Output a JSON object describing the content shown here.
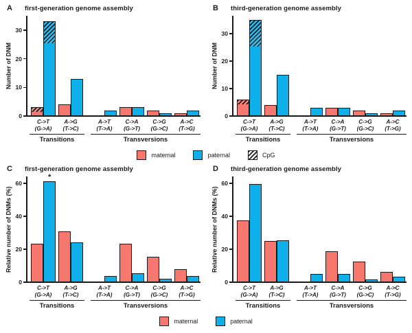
{
  "colors": {
    "maternal": "#F5776E",
    "paternal": "#0FAFEA",
    "outline": "#1a1a1a"
  },
  "legend_top": {
    "items": [
      {
        "label": "maternal",
        "swatch": "maternal"
      },
      {
        "label": "paternal",
        "swatch": "paternal"
      },
      {
        "label": "CpG",
        "swatch": "cpg"
      }
    ]
  },
  "legend_bottom": {
    "items": [
      {
        "label": "maternal",
        "swatch": "maternal"
      },
      {
        "label": "paternal",
        "swatch": "paternal"
      }
    ]
  },
  "chart_data": [
    {
      "panel": "A",
      "type": "bar",
      "title": "first-generation genome assembly",
      "ylabel": "Number of DNM",
      "yticks": [
        0,
        10,
        20,
        30
      ],
      "ymax": 35,
      "categories": [
        [
          "C->T",
          "(G->A)"
        ],
        [
          "A->G",
          "(T->C)"
        ],
        [
          "A->T",
          "(T->A)"
        ],
        [
          "C->A",
          "(G->T)"
        ],
        [
          "C->G",
          "(G->C)"
        ],
        [
          "A->C",
          "(T->G)"
        ]
      ],
      "sections": [
        {
          "label": "Transitions",
          "groups": [
            0,
            1
          ]
        },
        {
          "label": "Transversions",
          "groups": [
            2,
            3,
            4,
            5
          ]
        }
      ],
      "series": [
        {
          "name": "maternal",
          "values": [
            3,
            4,
            0,
            3,
            2,
            1
          ],
          "cpg": [
            2,
            0,
            0,
            0,
            0,
            0
          ]
        },
        {
          "name": "paternal",
          "values": [
            33,
            13,
            2,
            3,
            1,
            2
          ],
          "cpg": [
            8,
            0,
            0,
            0,
            0,
            0
          ]
        }
      ],
      "annotations": []
    },
    {
      "panel": "B",
      "type": "bar",
      "title": "third-generation genome assembly",
      "ylabel": "Number of DNM",
      "yticks": [
        0,
        10,
        20,
        30
      ],
      "ymax": 36.5,
      "categories": [
        [
          "C->T",
          "(G->A)"
        ],
        [
          "A->G",
          "(T->C)"
        ],
        [
          "A->T",
          "(T->A)"
        ],
        [
          "C->A",
          "(G->T)"
        ],
        [
          "C->G",
          "(G->C)"
        ],
        [
          "A->C",
          "(T->G)"
        ]
      ],
      "sections": [
        {
          "label": "Transitions",
          "groups": [
            0,
            1
          ]
        },
        {
          "label": "Transversions",
          "groups": [
            2,
            3,
            4,
            5
          ]
        }
      ],
      "series": [
        {
          "name": "maternal",
          "values": [
            6,
            4,
            0,
            3,
            2,
            1
          ],
          "cpg": [
            2,
            0,
            0,
            0,
            0,
            0
          ]
        },
        {
          "name": "paternal",
          "values": [
            35,
            15,
            3,
            3,
            1,
            2
          ],
          "cpg": [
            10,
            0,
            0,
            0,
            0,
            0
          ]
        }
      ],
      "annotations": []
    },
    {
      "panel": "C",
      "type": "bar",
      "title": "first-generation genome assembly",
      "ylabel": "Relative number of DNMs (%)",
      "yticks": [
        0,
        20,
        40,
        60
      ],
      "ymax": 64,
      "categories": [
        [
          "C->T",
          "(G->A)"
        ],
        [
          "A->G",
          "(T->C)"
        ],
        [
          "A->T",
          "(T->A)"
        ],
        [
          "C->A",
          "(G->T)"
        ],
        [
          "C->G",
          "(G->C)"
        ],
        [
          "A->C",
          "(T->G)"
        ]
      ],
      "sections": [
        {
          "label": "Transitions",
          "groups": [
            0,
            1
          ]
        },
        {
          "label": "Transversions",
          "groups": [
            2,
            3,
            4,
            5
          ]
        }
      ],
      "series": [
        {
          "name": "maternal",
          "values": [
            23.1,
            30.8,
            0,
            23.1,
            15.4,
            7.7
          ],
          "cpg": [
            0,
            0,
            0,
            0,
            0,
            0
          ]
        },
        {
          "name": "paternal",
          "values": [
            61.1,
            24.1,
            3.7,
            5.6,
            1.9,
            3.7
          ],
          "cpg": [
            0,
            0,
            0,
            0,
            0,
            0
          ]
        }
      ],
      "annotations": [
        {
          "group": 0,
          "series": 1,
          "text": "*"
        }
      ]
    },
    {
      "panel": "D",
      "type": "bar",
      "title": "third-generation genome assembly",
      "ylabel": "Relative number of DNMs (%)",
      "yticks": [
        0,
        20,
        40,
        60
      ],
      "ymax": 64,
      "categories": [
        [
          "C->T",
          "(G->A)"
        ],
        [
          "A->G",
          "(T->C)"
        ],
        [
          "A->T",
          "(T->A)"
        ],
        [
          "C->A",
          "(G->T)"
        ],
        [
          "C->G",
          "(G->C)"
        ],
        [
          "A->C",
          "(T->G)"
        ]
      ],
      "sections": [
        {
          "label": "Transitions",
          "groups": [
            0,
            1
          ]
        },
        {
          "label": "Transversions",
          "groups": [
            2,
            3,
            4,
            5
          ]
        }
      ],
      "series": [
        {
          "name": "maternal",
          "values": [
            37.5,
            25.0,
            0,
            18.8,
            12.5,
            6.3
          ],
          "cpg": [
            0,
            0,
            0,
            0,
            0,
            0
          ]
        },
        {
          "name": "paternal",
          "values": [
            59.3,
            25.4,
            5.1,
            5.1,
            1.7,
            3.4
          ],
          "cpg": [
            0,
            0,
            0,
            0,
            0,
            0
          ]
        }
      ],
      "annotations": []
    }
  ]
}
